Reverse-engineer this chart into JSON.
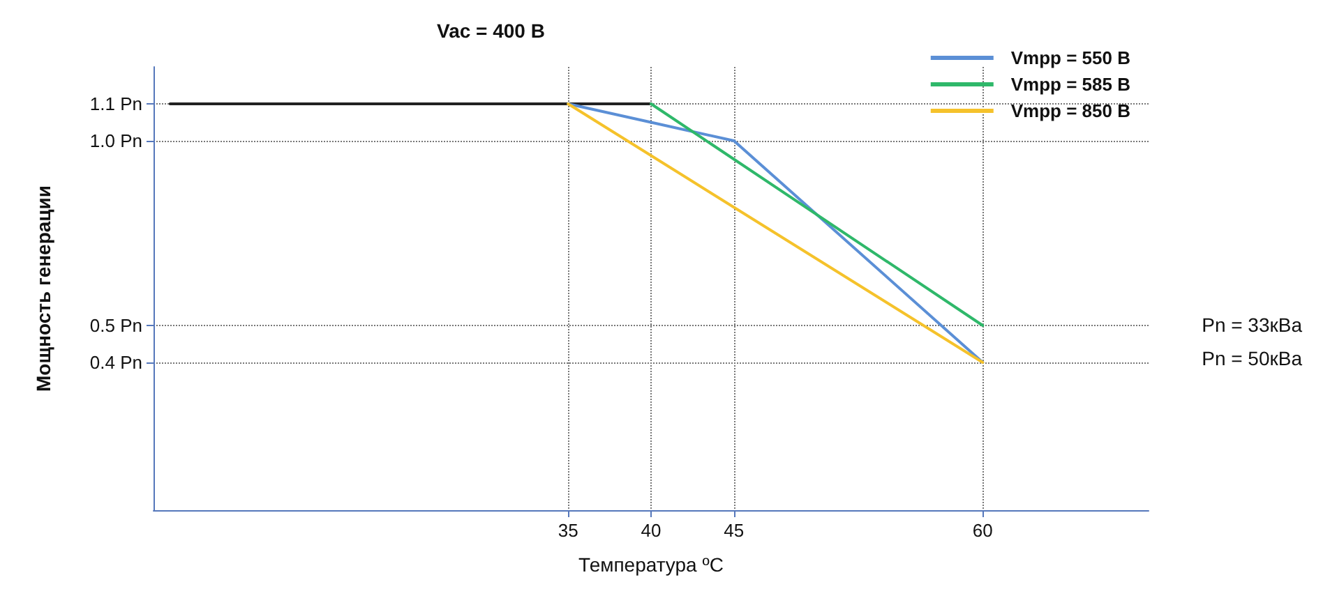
{
  "chart_data": {
    "type": "line",
    "title": "Vac = 400 В",
    "xlabel": "Температура ºС",
    "ylabel": "Мощность генерации",
    "xlim": [
      10,
      70
    ],
    "xticks": [
      35,
      40,
      45,
      60
    ],
    "ylim": [
      0,
      1.2
    ],
    "yticks": [
      {
        "value": 0.4,
        "label": "0.4 Pn"
      },
      {
        "value": 0.5,
        "label": "0.5 Pn"
      },
      {
        "value": 1.0,
        "label": "1.0 Pn"
      },
      {
        "value": 1.1,
        "label": "1.1 Pn"
      }
    ],
    "series": [
      {
        "color": "#222222",
        "x": [
          11,
          40
        ],
        "values": [
          1.1,
          1.1
        ]
      },
      {
        "name": "Vmpp = 550 В",
        "color": "#5b8fd6",
        "x": [
          35,
          40,
          45,
          60
        ],
        "values": [
          1.1,
          1.05,
          1.0,
          0.4
        ]
      },
      {
        "name": "Vmpp = 585 В",
        "color": "#2fb86a",
        "x": [
          40,
          60
        ],
        "values": [
          1.1,
          0.5
        ]
      },
      {
        "name": "Vmpp = 850 В",
        "color": "#f5c22b",
        "x": [
          35,
          60
        ],
        "values": [
          1.1,
          0.4
        ]
      }
    ],
    "annotations": [
      "Pn = 33кВа",
      "Pn = 50кВа"
    ],
    "grid": true,
    "line_style": "solid",
    "marker": "none",
    "legend": "top right"
  }
}
